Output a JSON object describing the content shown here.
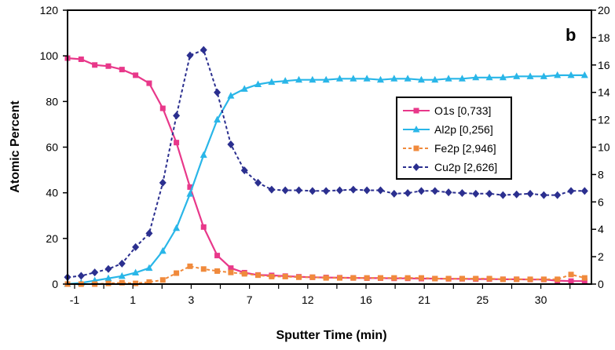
{
  "chart_data": {
    "type": "line",
    "panel_label": "b",
    "xlabel": "Sputter Time (min)",
    "ylabel": "Atomic Percent",
    "x_ticks": [
      "-1",
      "1",
      "3",
      "7",
      "12",
      "16",
      "21",
      "25",
      "30"
    ],
    "y_left_ticks": [
      "0",
      "20",
      "40",
      "60",
      "80",
      "100",
      "120"
    ],
    "y_right_ticks": [
      "0",
      "2",
      "4",
      "6",
      "8",
      "10",
      "12",
      "14",
      "16",
      "18",
      "20"
    ],
    "ylim_left": [
      0,
      120
    ],
    "ylim_right": [
      0,
      20
    ],
    "x_domain": [
      0,
      38.5
    ],
    "legend_position": "center-right",
    "series": [
      {
        "name": "O1s [0,733]",
        "color": "#e8388a",
        "axis": "left",
        "marker": "square",
        "dashed": false,
        "x": [
          0,
          1,
          2,
          3,
          4,
          5,
          6,
          7,
          8,
          9,
          10,
          11,
          12,
          13,
          14,
          15,
          16,
          17,
          18,
          19,
          20,
          21,
          22,
          23,
          24,
          25,
          26,
          27,
          28,
          29,
          30,
          31,
          32,
          33,
          34,
          35,
          36,
          37,
          38
        ],
        "y": [
          99,
          98.5,
          96,
          95.5,
          94,
          91.5,
          88,
          77,
          62,
          42.5,
          25,
          12.5,
          7,
          5,
          4,
          3.8,
          3.5,
          3.2,
          3,
          2.9,
          2.8,
          2.7,
          2.6,
          2.6,
          2.5,
          2.5,
          2.4,
          2.4,
          2.3,
          2.3,
          2.2,
          2.2,
          2.1,
          2.1,
          2,
          2,
          1.5,
          1.3,
          1.3
        ]
      },
      {
        "name": "Al2p [0,256]",
        "color": "#29b6e8",
        "axis": "left",
        "marker": "triangle",
        "dashed": false,
        "x": [
          0,
          1,
          2,
          3,
          4,
          5,
          6,
          7,
          8,
          9,
          10,
          11,
          12,
          13,
          14,
          15,
          16,
          17,
          18,
          19,
          20,
          21,
          22,
          23,
          24,
          25,
          26,
          27,
          28,
          29,
          30,
          31,
          32,
          33,
          34,
          35,
          36,
          37,
          38
        ],
        "y": [
          0,
          0.5,
          1.5,
          2.5,
          3.5,
          5,
          7,
          14.5,
          24.5,
          39.5,
          56.5,
          72,
          82.5,
          85.5,
          87.5,
          88.5,
          89,
          89.5,
          89.5,
          89.5,
          90,
          90,
          90,
          89.5,
          90,
          90,
          89.5,
          89.5,
          90,
          90,
          90.5,
          90.5,
          90.5,
          91,
          91,
          91,
          91.5,
          91.5,
          91.5
        ]
      },
      {
        "name": "Fe2p [2,946]",
        "color": "#f08a3c",
        "axis": "right",
        "marker": "square",
        "dashed": true,
        "x": [
          0,
          1,
          2,
          3,
          4,
          5,
          6,
          7,
          8,
          9,
          10,
          11,
          12,
          13,
          14,
          15,
          16,
          17,
          18,
          19,
          20,
          21,
          22,
          23,
          24,
          25,
          26,
          27,
          28,
          29,
          30,
          31,
          32,
          33,
          34,
          35,
          36,
          37,
          38
        ],
        "y": [
          0,
          0,
          0,
          0.05,
          0.1,
          0.05,
          0.15,
          0.3,
          0.8,
          1.3,
          1.1,
          0.95,
          0.85,
          0.75,
          0.65,
          0.55,
          0.55,
          0.5,
          0.5,
          0.45,
          0.45,
          0.45,
          0.45,
          0.45,
          0.45,
          0.45,
          0.45,
          0.4,
          0.4,
          0.4,
          0.4,
          0.4,
          0.35,
          0.35,
          0.35,
          0.35,
          0.35,
          0.7,
          0.45
        ]
      },
      {
        "name": "Cu2p [2,626]",
        "color": "#2b2f8f",
        "axis": "right",
        "marker": "diamond",
        "dashed": true,
        "x": [
          0,
          1,
          2,
          3,
          4,
          5,
          6,
          7,
          8,
          9,
          10,
          11,
          12,
          13,
          14,
          15,
          16,
          17,
          18,
          19,
          20,
          21,
          22,
          23,
          24,
          25,
          26,
          27,
          28,
          29,
          30,
          31,
          32,
          33,
          34,
          35,
          36,
          37,
          38
        ],
        "y": [
          0.5,
          0.6,
          0.85,
          1.1,
          1.5,
          2.7,
          3.7,
          7.4,
          12.3,
          16.7,
          17.1,
          14,
          10.2,
          8.3,
          7.4,
          6.9,
          6.85,
          6.85,
          6.8,
          6.8,
          6.85,
          6.9,
          6.85,
          6.85,
          6.6,
          6.65,
          6.8,
          6.8,
          6.7,
          6.65,
          6.6,
          6.6,
          6.5,
          6.55,
          6.6,
          6.5,
          6.5,
          6.8,
          6.8
        ]
      }
    ]
  }
}
